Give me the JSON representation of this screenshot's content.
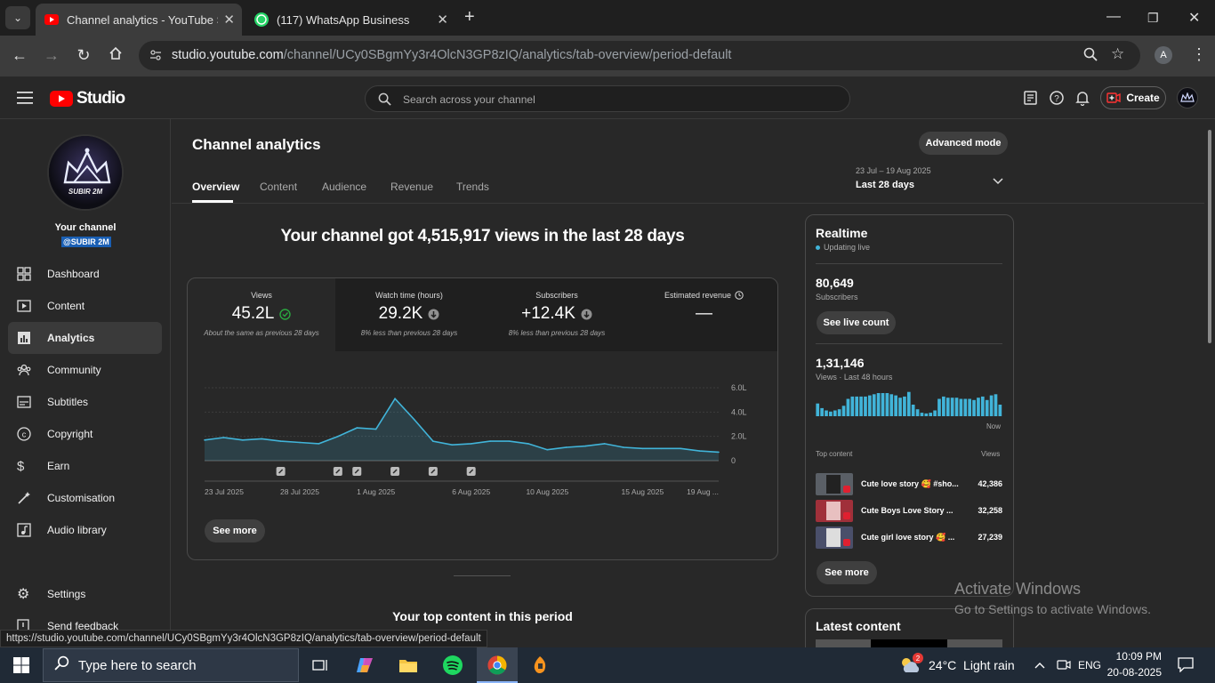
{
  "browser": {
    "tabs": [
      {
        "title": "Channel analytics - YouTube Stu",
        "icon": "youtube-icon",
        "active": true
      },
      {
        "title": "(117) WhatsApp Business",
        "icon": "whatsapp-icon",
        "active": false
      }
    ],
    "new_tab": "+",
    "url_host": "studio.youtube.com",
    "url_path": "/channel/UCy0SBgmYy3r4OlcN3GP8zIQ/analytics/tab-overview/period-default",
    "profile_initial": "A",
    "status_url": "https://studio.youtube.com/channel/UCy0SBgmYy3r4OlcN3GP8zIQ/analytics/tab-overview/period-default"
  },
  "header": {
    "logo_text": "Studio",
    "search_placeholder": "Search across your channel",
    "create_label": "Create"
  },
  "sidebar": {
    "your_channel": "Your channel",
    "handle": "@SUBIR 2M",
    "avatar_text": "SUBIR 2M",
    "items": [
      {
        "label": "Dashboard",
        "icon": "dashboard-icon"
      },
      {
        "label": "Content",
        "icon": "content-icon"
      },
      {
        "label": "Analytics",
        "icon": "analytics-icon"
      },
      {
        "label": "Community",
        "icon": "community-icon"
      },
      {
        "label": "Subtitles",
        "icon": "subtitles-icon"
      },
      {
        "label": "Copyright",
        "icon": "copyright-icon"
      },
      {
        "label": "Earn",
        "icon": "earn-icon"
      },
      {
        "label": "Customisation",
        "icon": "customisation-icon"
      },
      {
        "label": "Audio library",
        "icon": "audio-library-icon"
      }
    ],
    "settings": "Settings",
    "feedback": "Send feedback"
  },
  "main": {
    "title": "Channel analytics",
    "advanced_mode": "Advanced mode",
    "tabs": [
      "Overview",
      "Content",
      "Audience",
      "Revenue",
      "Trends"
    ],
    "active_tab": "Overview",
    "date_range": "23 Jul – 19 Aug 2025",
    "period": "Last 28 days",
    "headline": "Your channel got 4,515,917 views in the last 28 days",
    "metrics": [
      {
        "label": "Views",
        "value": "45.2L",
        "note": "About the same as previous 28 days",
        "status": "check"
      },
      {
        "label": "Watch time (hours)",
        "value": "29.2K",
        "note": "8% less than previous 28 days",
        "status": "down"
      },
      {
        "label": "Subscribers",
        "value": "+12.4K",
        "note": "8% less than previous 28 days",
        "status": "down"
      },
      {
        "label": "Estimated revenue",
        "value": "—",
        "note": "",
        "status": "clock"
      }
    ],
    "see_more": "See more",
    "top_content_title": "Your top content in this period"
  },
  "chart_data": {
    "type": "area",
    "x": [
      "23 Jul 2025",
      "24 Jul",
      "25 Jul",
      "26 Jul",
      "27 Jul",
      "28 Jul 2025",
      "29 Jul",
      "30 Jul",
      "31 Jul",
      "1 Aug 2025",
      "2 Aug",
      "3 Aug",
      "4 Aug",
      "5 Aug",
      "6 Aug 2025",
      "7 Aug",
      "8 Aug",
      "9 Aug",
      "10 Aug 2025",
      "11 Aug",
      "12 Aug",
      "13 Aug",
      "14 Aug",
      "15 Aug 2025",
      "16 Aug",
      "17 Aug",
      "18 Aug",
      "19 Aug"
    ],
    "values": [
      1.7,
      1.9,
      1.7,
      1.8,
      1.6,
      1.5,
      1.4,
      2.0,
      2.7,
      2.6,
      5.1,
      3.4,
      1.6,
      1.3,
      1.4,
      1.6,
      1.6,
      1.4,
      0.9,
      1.1,
      1.2,
      1.4,
      1.1,
      1.0,
      1.0,
      1.0,
      0.8,
      0.7
    ],
    "x_tick_labels": [
      "23 Jul 2025",
      "28 Jul 2025",
      "1 Aug 2025",
      "6 Aug 2025",
      "10 Aug 2025",
      "15 Aug 2025",
      "19 Aug ..."
    ],
    "x_tick_indices": [
      0,
      5,
      9,
      14,
      18,
      23,
      27
    ],
    "y_ticks": [
      "0",
      "2.0L",
      "4.0L",
      "6.0L"
    ],
    "y_tick_values": [
      0,
      2,
      4,
      6
    ],
    "ylim": [
      0,
      6
    ],
    "series_color": "#41b4d9",
    "marker_indices": [
      4,
      7,
      8,
      10,
      12,
      14
    ]
  },
  "realtime": {
    "title": "Realtime",
    "updating": "Updating live",
    "subs_value": "80,649",
    "subs_label": "Subscribers",
    "see_live": "See live count",
    "views_value": "1,31,146",
    "views_label": "Views · Last 48 hours",
    "now": "Now",
    "bars": [
      0.55,
      0.35,
      0.25,
      0.2,
      0.25,
      0.3,
      0.45,
      0.75,
      0.85,
      0.85,
      0.85,
      0.85,
      0.9,
      0.95,
      1.0,
      1.0,
      1.0,
      0.95,
      0.9,
      0.8,
      0.85,
      1.05,
      0.5,
      0.3,
      0.15,
      0.12,
      0.15,
      0.25,
      0.75,
      0.85,
      0.8,
      0.8,
      0.8,
      0.75,
      0.75,
      0.75,
      0.7,
      0.8,
      0.85,
      0.7,
      0.9,
      0.95,
      0.5
    ],
    "top_content_label": "Top content",
    "views_col": "Views",
    "top_content": [
      {
        "title": "Cute love story 🥰 #sho...",
        "views": "42,386",
        "color": "#5a5f66"
      },
      {
        "title": "Cute Boys Love Story ...",
        "views": "32,258",
        "color": "#a0303a"
      },
      {
        "title": "Cute girl love story 🥰 ...",
        "views": "27,239",
        "color": "#4a4f6a"
      }
    ],
    "see_more": "See more",
    "latest_title": "Latest content"
  },
  "watermark": {
    "line1": "Activate Windows",
    "line2": "Go to Settings to activate Windows."
  },
  "taskbar": {
    "search_placeholder": "Type here to search",
    "weather": "24°C  Light rain",
    "weather_badge": "2",
    "lang": "ENG",
    "time": "10:09 PM",
    "date": "20-08-2025"
  }
}
